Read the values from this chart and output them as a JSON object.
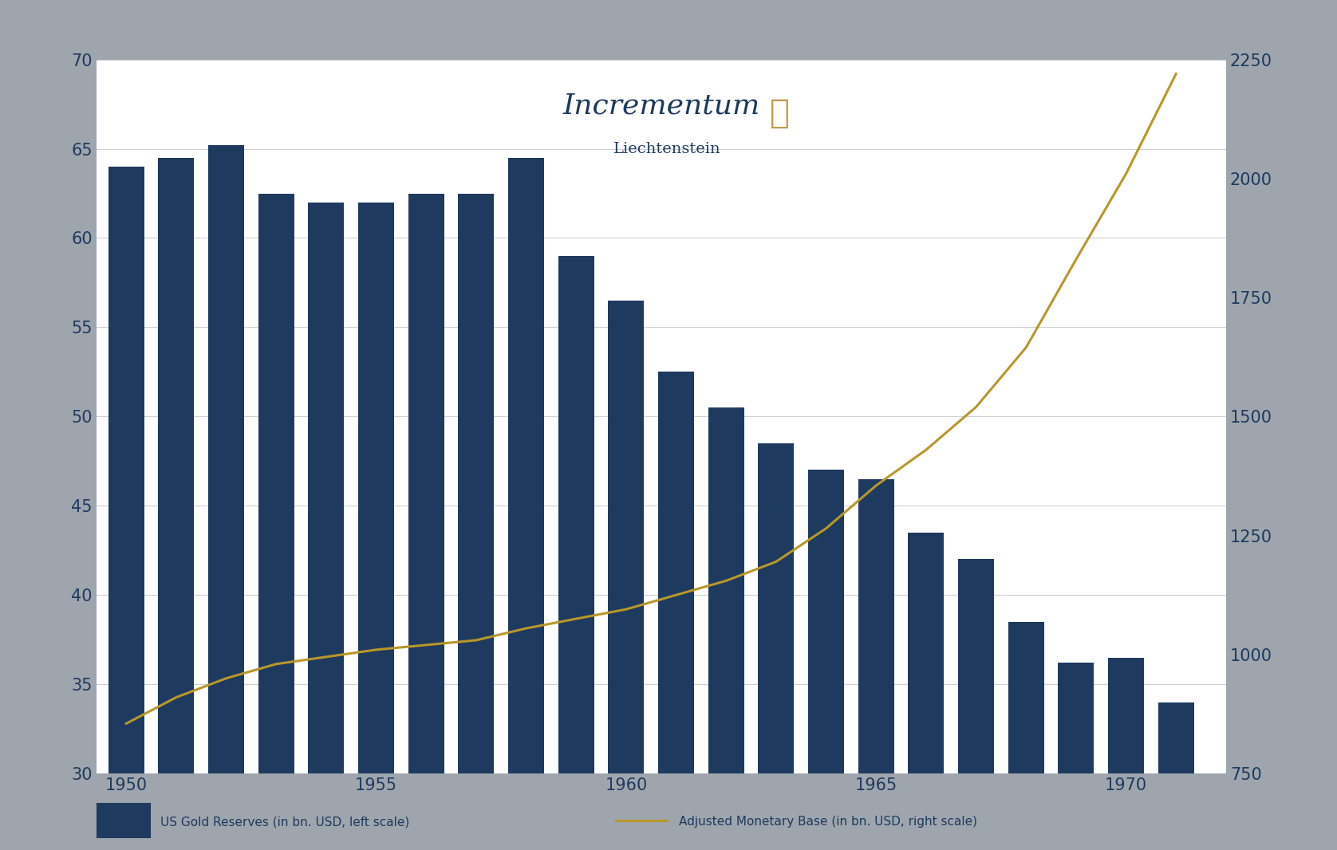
{
  "years": [
    1950,
    1951,
    1952,
    1953,
    1954,
    1955,
    1956,
    1957,
    1958,
    1959,
    1960,
    1961,
    1962,
    1963,
    1964,
    1965,
    1966,
    1967,
    1968,
    1969,
    1970,
    1971
  ],
  "gold_reserves": [
    64.0,
    64.5,
    65.2,
    62.5,
    62.0,
    62.0,
    62.5,
    62.5,
    64.5,
    59.0,
    56.5,
    52.5,
    50.5,
    48.5,
    47.0,
    46.5,
    43.5,
    42.0,
    38.5,
    36.2,
    36.5,
    34.0
  ],
  "monetary_base": [
    855,
    910,
    950,
    980,
    995,
    1010,
    1020,
    1030,
    1055,
    1075,
    1095,
    1125,
    1155,
    1195,
    1265,
    1355,
    1430,
    1520,
    1645,
    1830,
    2010,
    2220
  ],
  "bar_color": "#1e3a5f",
  "line_color": "#b8972a",
  "plot_bg": "#ffffff",
  "outer_bg": "#9ea5ad",
  "left_ylim": [
    30,
    70
  ],
  "right_ylim": [
    750,
    2250
  ],
  "left_yticks": [
    30,
    35,
    40,
    45,
    50,
    55,
    60,
    65,
    70
  ],
  "right_yticks": [
    750,
    1000,
    1250,
    1500,
    1750,
    2000,
    2250
  ],
  "xticks": [
    1950,
    1955,
    1960,
    1965,
    1970
  ],
  "title": "Incrementum",
  "subtitle": "Liechtenstein",
  "title_color": "#1e3a5f",
  "bar_width": 0.72,
  "grid_color": "#d0d0d0",
  "tick_label_color": "#1e3a5f",
  "tick_label_fontsize": 15,
  "xlim": [
    1949.4,
    1972.0
  ]
}
